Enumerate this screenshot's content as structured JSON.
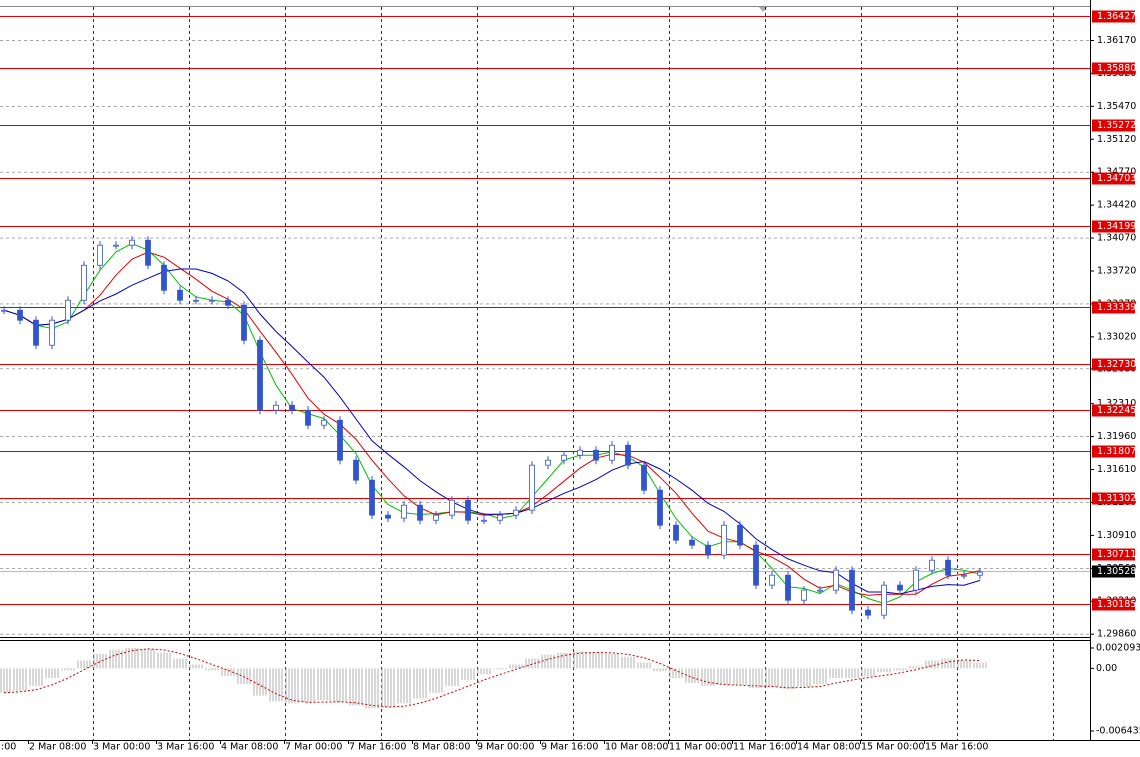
{
  "chart_data": {
    "type": "candlestick",
    "x_labels": [
      ":00",
      "2 Mar 08:00",
      "3 Mar 00:00",
      "3 Mar 16:00",
      "4 Mar 08:00",
      "7 Mar 00:00",
      "7 Mar 16:00",
      "8 Mar 08:00",
      "9 Mar 00:00",
      "9 Mar 16:00",
      "10 Mar 08:00",
      "11 Mar 00:00",
      "11 Mar 16:00",
      "14 Mar 08:00",
      "15 Mar 00:00",
      "15 Mar 16:00"
    ],
    "close": [
      1.33303,
      1.33197,
      1.32931,
      1.33197,
      1.33409,
      1.33781,
      1.33994,
      1.33994,
      1.34047,
      1.33781,
      1.33515,
      1.33409,
      1.33409,
      1.33409,
      1.33356,
      1.32984,
      1.3224,
      1.32293,
      1.3224,
      1.32081,
      1.32134,
      1.31709,
      1.31497,
      1.31125,
      1.31093,
      1.31231,
      1.31071,
      1.31125,
      1.31284,
      1.31071,
      1.31071,
      1.31125,
      1.31178,
      1.31656,
      1.31709,
      1.31762,
      1.31815,
      1.31709,
      1.31868,
      1.31656,
      1.3139,
      1.31018,
      1.30859,
      1.30806,
      1.307,
      1.31018,
      1.30806,
      1.30381,
      1.30487,
      1.30221,
      1.30328,
      1.30328,
      1.3054,
      1.30115,
      1.30062,
      1.30381,
      1.30328,
      1.3054,
      1.30646,
      1.30487,
      1.30487,
      1.30519
    ],
    "candle_color": "#3355cc",
    "ma_colors": [
      "#00c000",
      "#e00000",
      "#0000c0"
    ],
    "ylim": [
      1.2983,
      1.366
    ],
    "yticks": [
      {
        "value": 1.3617,
        "label": "1.36170"
      },
      {
        "value": 1.3582,
        "label": "1.35820"
      },
      {
        "value": 1.3547,
        "label": "1.35470"
      },
      {
        "value": 1.3512,
        "label": "1.35120"
      },
      {
        "value": 1.3477,
        "label": "1.34770"
      },
      {
        "value": 1.3442,
        "label": "1.34420"
      },
      {
        "value": 1.3407,
        "label": "1.34070"
      },
      {
        "value": 1.3372,
        "label": "1.33720"
      },
      {
        "value": 1.3337,
        "label": "1.33370"
      },
      {
        "value": 1.3302,
        "label": "1.33020"
      },
      {
        "value": 1.3268,
        "label": "1.32680"
      },
      {
        "value": 1.3231,
        "label": "1.32310"
      },
      {
        "value": 1.3196,
        "label": "1.31960"
      },
      {
        "value": 1.3161,
        "label": "1.31610"
      },
      {
        "value": 1.3126,
        "label": "1.31260"
      },
      {
        "value": 1.3091,
        "label": "1.30910"
      },
      {
        "value": 1.3056,
        "label": "1.30560"
      },
      {
        "value": 1.3021,
        "label": "1.30210"
      },
      {
        "value": 1.2986,
        "label": "1.29860"
      }
    ],
    "grid": true,
    "levels": [
      1.36427,
      {
        "value": 1.3588,
        "label": "1.35880"
      },
      1.35272,
      1.34703,
      1.34199,
      1.33339,
      {
        "value": 1.3273,
        "label": "1.32730"
      },
      1.32245,
      1.31807,
      1.31302,
      1.30711,
      1.30185
    ],
    "level_color": "#e00000",
    "current_price": 1.30528,
    "oscillator": {
      "values": [
        -0.0025,
        -0.0023,
        -0.0018,
        -0.001,
        -0.0002,
        0.0008,
        0.0015,
        0.0019,
        0.0021,
        0.002,
        0.0016,
        0.001,
        0.0004,
        -0.0002,
        -0.0008,
        -0.0016,
        -0.0028,
        -0.0034,
        -0.0036,
        -0.0035,
        -0.0033,
        -0.0035,
        -0.0038,
        -0.0041,
        -0.004,
        -0.0036,
        -0.0031,
        -0.0025,
        -0.0018,
        -0.0012,
        -0.0006,
        -0.0001,
        0.0004,
        0.001,
        0.0014,
        0.0016,
        0.0017,
        0.0016,
        0.0015,
        0.0012,
        0.0006,
        -0.0003,
        -0.001,
        -0.0015,
        -0.0018,
        -0.0017,
        -0.0017,
        -0.002,
        -0.0019,
        -0.0021,
        -0.0019,
        -0.0016,
        -0.001,
        -0.001,
        -0.0008,
        -0.0004,
        -0.0002,
        0.0002,
        0.0008,
        0.001,
        0.0008,
        0.0006
      ],
      "ylim": [
        -0.00736,
        0.002915
      ],
      "yticks": [
        0.002093,
        {
          "value": 0,
          "label": "0.00"
        },
        -0.006435
      ],
      "color": "#b0b0b0",
      "signal_color": "#cc0000"
    }
  }
}
